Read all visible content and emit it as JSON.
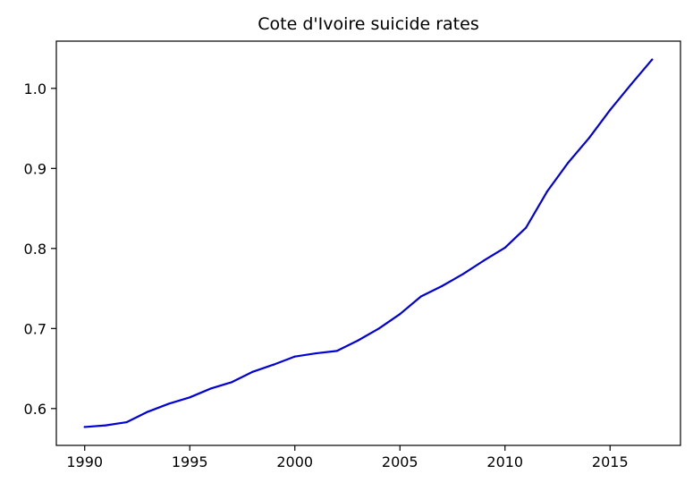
{
  "chart_data": {
    "type": "line",
    "title": "Cote d'Ivoire suicide rates",
    "xlabel": "",
    "ylabel": "",
    "x": [
      1990,
      1991,
      1992,
      1993,
      1994,
      1995,
      1996,
      1997,
      1998,
      1999,
      2000,
      2001,
      2002,
      2003,
      2004,
      2005,
      2006,
      2007,
      2008,
      2009,
      2010,
      2011,
      2012,
      2013,
      2014,
      2015,
      2016,
      2017
    ],
    "series": [
      {
        "values": [
          0.577,
          0.579,
          0.583,
          0.596,
          0.606,
          0.614,
          0.625,
          0.633,
          0.646,
          0.655,
          0.665,
          0.669,
          0.672,
          0.685,
          0.7,
          0.718,
          0.74,
          0.753,
          0.768,
          0.785,
          0.801,
          0.826,
          0.871,
          0.907,
          0.938,
          0.973,
          1.005,
          1.036
        ],
        "color": "#0000dd"
      }
    ],
    "xlim": [
      1988.65,
      2018.35
    ],
    "ylim": [
      0.554,
      1.059
    ],
    "xticks": [
      1990,
      1995,
      2000,
      2005,
      2010,
      2015
    ],
    "xtick_labels": [
      "1990",
      "1995",
      "2000",
      "2005",
      "2010",
      "2015"
    ],
    "yticks": [
      0.6,
      0.7,
      0.8,
      0.9,
      1.0
    ],
    "ytick_labels": [
      "0.6",
      "0.7",
      "0.8",
      "0.9",
      "1.0"
    ],
    "grid": false,
    "legend": "none"
  }
}
